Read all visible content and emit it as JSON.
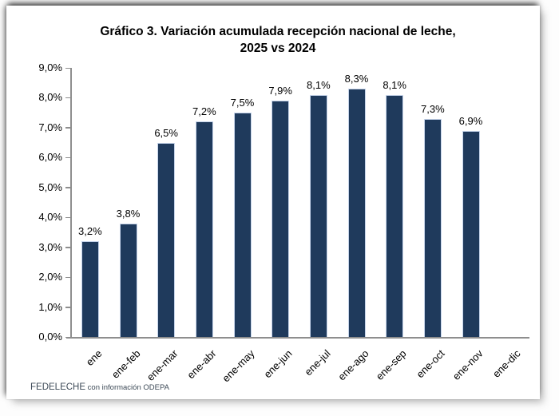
{
  "chart": {
    "title_line1": "Gráfico 3. Variación acumulada recepción nacional de leche,",
    "title_line2": "2025 vs 2024",
    "footer": {
      "org": "FEDELECHE",
      "note": " con información ODEPA"
    }
  },
  "chart_data": {
    "type": "bar",
    "title": "Gráfico 3. Variación acumulada recepción nacional de leche, 2025 vs 2024",
    "categories": [
      "ene",
      "ene-feb",
      "ene-mar",
      "ene-abr",
      "ene-may",
      "ene-jun",
      "ene-jul",
      "ene-ago",
      "ene-sep",
      "ene-oct",
      "ene-nov",
      "ene-dic"
    ],
    "values": [
      3.2,
      3.8,
      6.5,
      7.2,
      7.5,
      7.9,
      8.1,
      8.3,
      8.1,
      7.3,
      6.9,
      null
    ],
    "value_labels": [
      "3,2%",
      "3,8%",
      "6,5%",
      "7,2%",
      "7,5%",
      "7,9%",
      "8,1%",
      "8,3%",
      "8,1%",
      "7,3%",
      "6,9%",
      ""
    ],
    "y_tick_labels": [
      "0,0%",
      "1,0%",
      "2,0%",
      "3,0%",
      "4,0%",
      "5,0%",
      "6,0%",
      "7,0%",
      "8,0%",
      "9,0%"
    ],
    "xlabel": "",
    "ylabel": "",
    "ylim": [
      0,
      9
    ],
    "grid": false,
    "legend": null,
    "colors": {
      "bar_fill": "#1F3A5C",
      "bar_border": "#C6D4EA",
      "axis": "#8E8E8E",
      "label": "#000000",
      "footer": "#3D4A57"
    }
  }
}
